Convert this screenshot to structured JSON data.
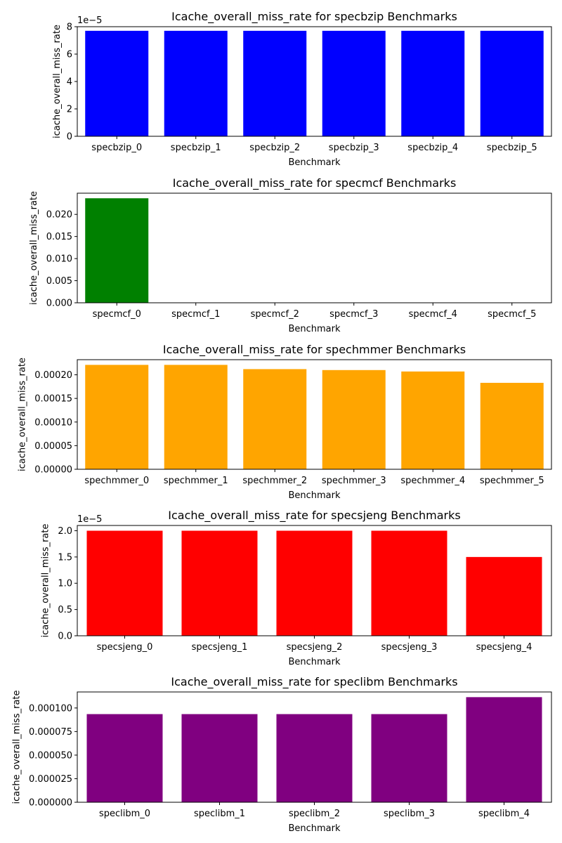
{
  "chart_data": [
    {
      "type": "bar",
      "title": "Icache_overall_miss_rate for specbzip Benchmarks",
      "xlabel": "Benchmark",
      "ylabel": "icache_overall_miss_rate",
      "categories": [
        "specbzip_0",
        "specbzip_1",
        "specbzip_2",
        "specbzip_3",
        "specbzip_4",
        "specbzip_5"
      ],
      "values": [
        7.7e-05,
        7.7e-05,
        7.7e-05,
        7.7e-05,
        7.7e-05,
        7.7e-05
      ],
      "ylim": [
        0,
        8
      ],
      "tick_labels": [
        "0",
        "2",
        "4",
        "6",
        "8"
      ],
      "offset_label": "1e−5",
      "color": "#0000ff",
      "grid": false
    },
    {
      "type": "bar",
      "title": "Icache_overall_miss_rate for specmcf Benchmarks",
      "xlabel": "Benchmark",
      "ylabel": "icache_overall_miss_rate",
      "categories": [
        "specmcf_0",
        "specmcf_1",
        "specmcf_2",
        "specmcf_3",
        "specmcf_4",
        "specmcf_5"
      ],
      "values": [
        0.02365,
        3e-05,
        3e-05,
        3e-05,
        3e-05,
        3e-05
      ],
      "ylim": [
        0,
        0.0248
      ],
      "tick_labels": [
        "0.000",
        "0.005",
        "0.010",
        "0.015",
        "0.020"
      ],
      "color": "#008000",
      "grid": false
    },
    {
      "type": "bar",
      "title": "Icache_overall_miss_rate for spechmmer Benchmarks",
      "xlabel": "Benchmark",
      "ylabel": "icache_overall_miss_rate",
      "categories": [
        "spechmmer_0",
        "spechmmer_1",
        "spechmmer_2",
        "spechmmer_3",
        "spechmmer_4",
        "spechmmer_5"
      ],
      "values": [
        0.000221,
        0.000221,
        0.000212,
        0.00021,
        0.000207,
        0.000183
      ],
      "ylim": [
        0,
        0.000232
      ],
      "tick_labels": [
        "0.00000",
        "0.00005",
        "0.00010",
        "0.00015",
        "0.00020"
      ],
      "color": "#ffa500",
      "grid": false
    },
    {
      "type": "bar",
      "title": "Icache_overall_miss_rate for specsjeng Benchmarks",
      "xlabel": "Benchmark",
      "ylabel": "icache_overall_miss_rate",
      "categories": [
        "specsjeng_0",
        "specsjeng_1",
        "specsjeng_2",
        "specsjeng_3",
        "specsjeng_4"
      ],
      "values": [
        2e-05,
        2e-05,
        2e-05,
        2e-05,
        1.5e-05
      ],
      "ylim": [
        0,
        2.1
      ],
      "tick_labels": [
        "0.0",
        "0.5",
        "1.0",
        "1.5",
        "2.0"
      ],
      "offset_label": "1e−5",
      "color": "#ff0000",
      "grid": false
    },
    {
      "type": "bar",
      "title": "Icache_overall_miss_rate for speclibm Benchmarks",
      "xlabel": "Benchmark",
      "ylabel": "icache_overall_miss_rate",
      "categories": [
        "speclibm_0",
        "speclibm_1",
        "speclibm_2",
        "speclibm_3",
        "speclibm_4"
      ],
      "values": [
        9.35e-05,
        9.35e-05,
        9.35e-05,
        9.35e-05,
        0.0001115
      ],
      "ylim": [
        0,
        0.000117
      ],
      "tick_labels": [
        "0.000000",
        "0.000025",
        "0.000050",
        "0.000075",
        "0.000100"
      ],
      "color": "#800080",
      "grid": false
    }
  ]
}
